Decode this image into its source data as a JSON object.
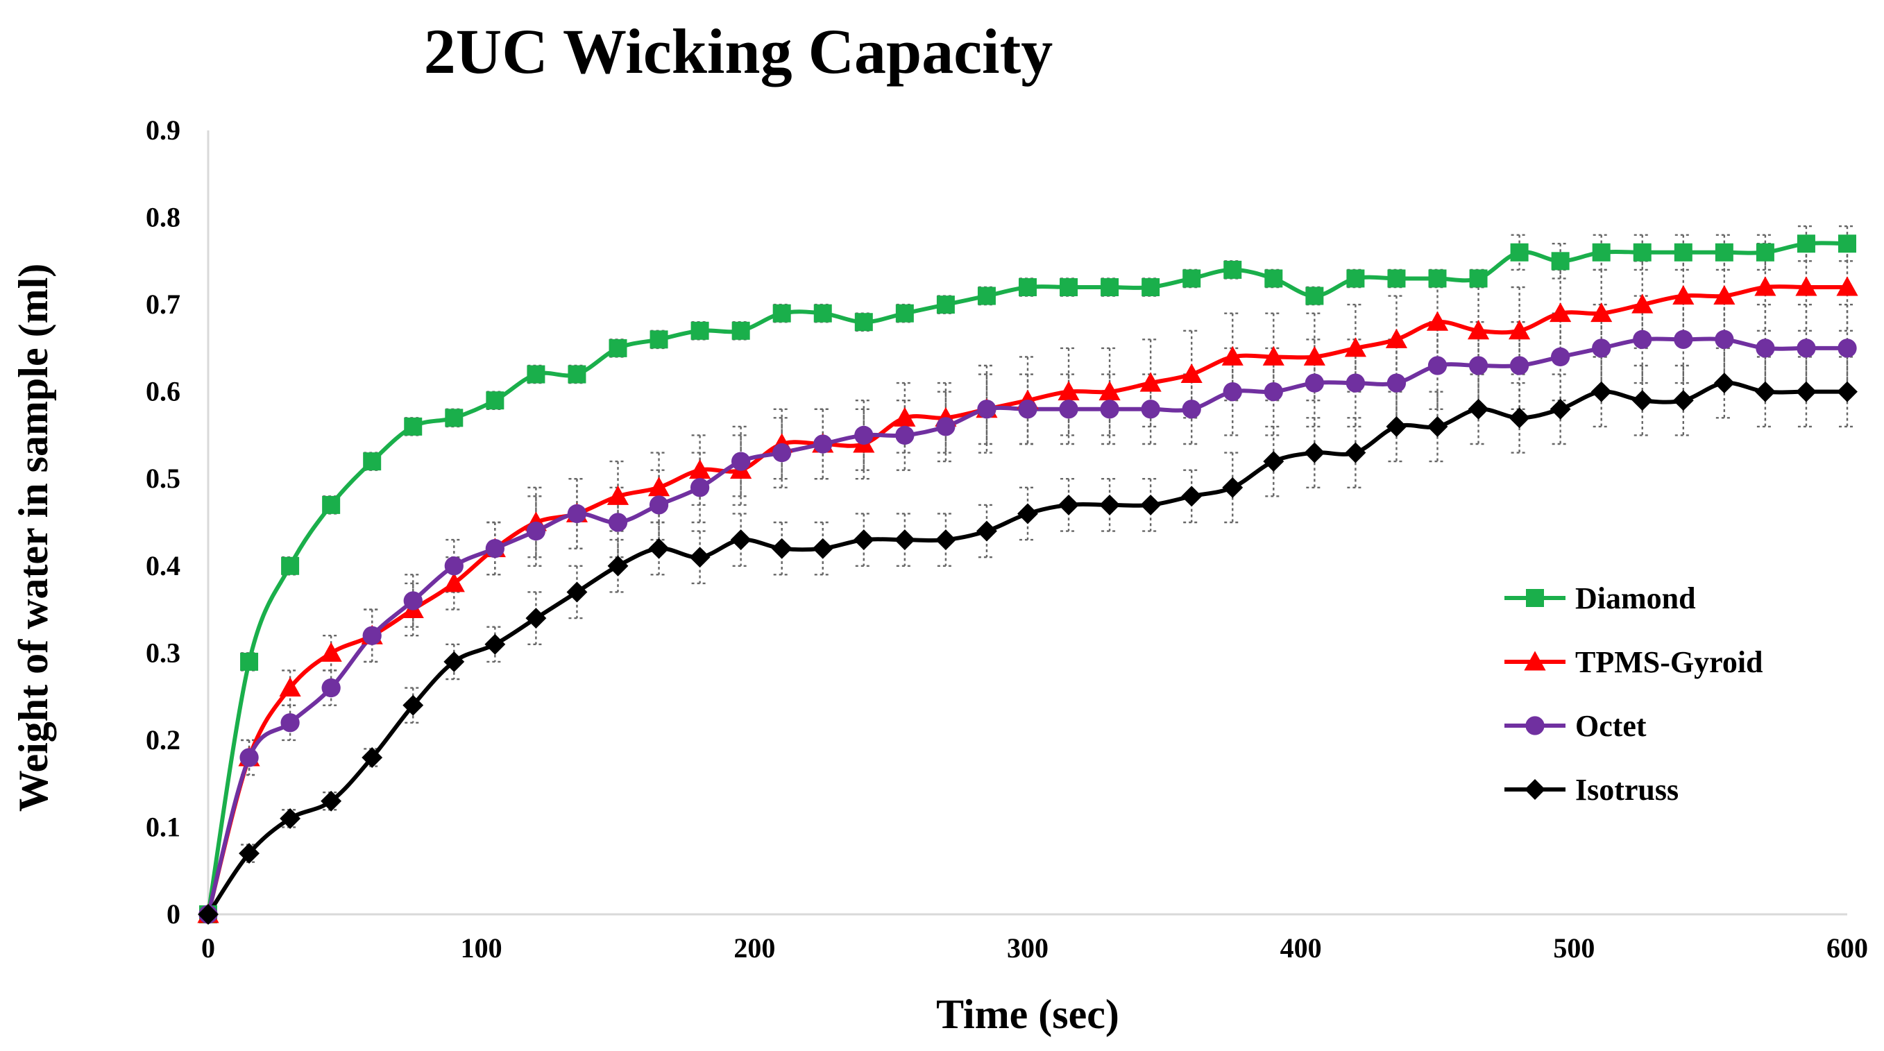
{
  "chart_data": {
    "type": "line",
    "title": "2UC Wicking Capacity",
    "xlabel": "Time (sec)",
    "ylabel": "Weight of water in sample (ml)",
    "xlim": [
      0,
      600
    ],
    "ylim": [
      0,
      0.9
    ],
    "x_ticks": [
      0,
      100,
      200,
      300,
      400,
      500,
      600
    ],
    "y_ticks": [
      0,
      0.1,
      0.2,
      0.3,
      0.4,
      0.5,
      0.6,
      0.7,
      0.8,
      0.9
    ],
    "x_tick_labels": [
      "0",
      "100",
      "200",
      "300",
      "400",
      "500",
      "600"
    ],
    "y_tick_labels": [
      "0",
      "0.1",
      "0.2",
      "0.3",
      "0.4",
      "0.5",
      "0.6",
      "0.7",
      "0.8",
      "0.9"
    ],
    "grid": false,
    "legend_position": "right",
    "error_bars": true,
    "x": [
      0,
      15,
      30,
      45,
      60,
      75,
      90,
      105,
      120,
      135,
      150,
      165,
      180,
      195,
      210,
      225,
      240,
      255,
      270,
      285,
      300,
      315,
      330,
      345,
      360,
      375,
      390,
      405,
      420,
      435,
      450,
      465,
      480,
      495,
      510,
      525,
      540,
      555,
      570,
      585,
      600
    ],
    "series": [
      {
        "name": "Diamond",
        "color": "#1aaf4b",
        "marker": "square",
        "values": [
          0,
          0.29,
          0.4,
          0.47,
          0.52,
          0.56,
          0.57,
          0.59,
          0.62,
          0.62,
          0.65,
          0.66,
          0.67,
          0.67,
          0.69,
          0.69,
          0.68,
          0.69,
          0.7,
          0.71,
          0.72,
          0.72,
          0.72,
          0.72,
          0.73,
          0.74,
          0.73,
          0.71,
          0.73,
          0.73,
          0.73,
          0.73,
          0.76,
          0.75,
          0.76,
          0.76,
          0.76,
          0.76,
          0.76,
          0.77,
          0.77
        ],
        "errors": [
          0,
          0.01,
          0.01,
          0.01,
          0.01,
          0.01,
          0.01,
          0.01,
          0.01,
          0.01,
          0.01,
          0.01,
          0.01,
          0.01,
          0.01,
          0.01,
          0.01,
          0.01,
          0.01,
          0.01,
          0.01,
          0.01,
          0.01,
          0.01,
          0.01,
          0.01,
          0.01,
          0.01,
          0.01,
          0.01,
          0.01,
          0.01,
          0.02,
          0.02,
          0.02,
          0.02,
          0.02,
          0.02,
          0.02,
          0.02,
          0.02
        ]
      },
      {
        "name": "TPMS-Gyroid",
        "color": "#ff0000",
        "marker": "triangle",
        "values": [
          0,
          0.18,
          0.26,
          0.3,
          0.32,
          0.35,
          0.38,
          0.42,
          0.45,
          0.46,
          0.48,
          0.49,
          0.51,
          0.51,
          0.54,
          0.54,
          0.54,
          0.57,
          0.57,
          0.58,
          0.59,
          0.6,
          0.6,
          0.61,
          0.62,
          0.64,
          0.64,
          0.64,
          0.65,
          0.66,
          0.68,
          0.67,
          0.67,
          0.69,
          0.69,
          0.7,
          0.71,
          0.71,
          0.72,
          0.72,
          0.72
        ],
        "errors": [
          0,
          0.02,
          0.02,
          0.02,
          0.03,
          0.03,
          0.03,
          0.03,
          0.04,
          0.04,
          0.04,
          0.04,
          0.04,
          0.04,
          0.04,
          0.04,
          0.04,
          0.04,
          0.04,
          0.05,
          0.05,
          0.05,
          0.05,
          0.05,
          0.05,
          0.05,
          0.05,
          0.05,
          0.05,
          0.05,
          0.05,
          0.05,
          0.05,
          0.05,
          0.05,
          0.05,
          0.05,
          0.05,
          0.05,
          0.05,
          0.05
        ]
      },
      {
        "name": "Octet",
        "color": "#7030a0",
        "marker": "circle",
        "values": [
          0,
          0.18,
          0.22,
          0.26,
          0.32,
          0.36,
          0.4,
          0.42,
          0.44,
          0.46,
          0.45,
          0.47,
          0.49,
          0.52,
          0.53,
          0.54,
          0.55,
          0.55,
          0.56,
          0.58,
          0.58,
          0.58,
          0.58,
          0.58,
          0.58,
          0.6,
          0.6,
          0.61,
          0.61,
          0.61,
          0.63,
          0.63,
          0.63,
          0.64,
          0.65,
          0.66,
          0.66,
          0.66,
          0.65,
          0.65,
          0.65
        ],
        "errors": [
          0,
          0.02,
          0.02,
          0.02,
          0.03,
          0.03,
          0.03,
          0.03,
          0.04,
          0.04,
          0.04,
          0.04,
          0.04,
          0.04,
          0.04,
          0.04,
          0.04,
          0.04,
          0.04,
          0.04,
          0.04,
          0.04,
          0.04,
          0.04,
          0.04,
          0.05,
          0.05,
          0.05,
          0.05,
          0.05,
          0.05,
          0.05,
          0.05,
          0.05,
          0.05,
          0.05,
          0.05,
          0.05,
          0.05,
          0.05,
          0.05
        ]
      },
      {
        "name": "Isotruss",
        "color": "#000000",
        "marker": "diamond",
        "values": [
          0,
          0.07,
          0.11,
          0.13,
          0.18,
          0.24,
          0.29,
          0.31,
          0.34,
          0.37,
          0.4,
          0.42,
          0.41,
          0.43,
          0.42,
          0.42,
          0.43,
          0.43,
          0.43,
          0.44,
          0.46,
          0.47,
          0.47,
          0.47,
          0.48,
          0.49,
          0.52,
          0.53,
          0.53,
          0.56,
          0.56,
          0.58,
          0.57,
          0.58,
          0.6,
          0.59,
          0.59,
          0.61,
          0.6,
          0.6,
          0.6
        ],
        "errors": [
          0,
          0.01,
          0.01,
          0.01,
          0.01,
          0.02,
          0.02,
          0.02,
          0.03,
          0.03,
          0.03,
          0.03,
          0.03,
          0.03,
          0.03,
          0.03,
          0.03,
          0.03,
          0.03,
          0.03,
          0.03,
          0.03,
          0.03,
          0.03,
          0.03,
          0.04,
          0.04,
          0.04,
          0.04,
          0.04,
          0.04,
          0.04,
          0.04,
          0.04,
          0.04,
          0.04,
          0.04,
          0.04,
          0.04,
          0.04,
          0.04
        ]
      }
    ]
  }
}
